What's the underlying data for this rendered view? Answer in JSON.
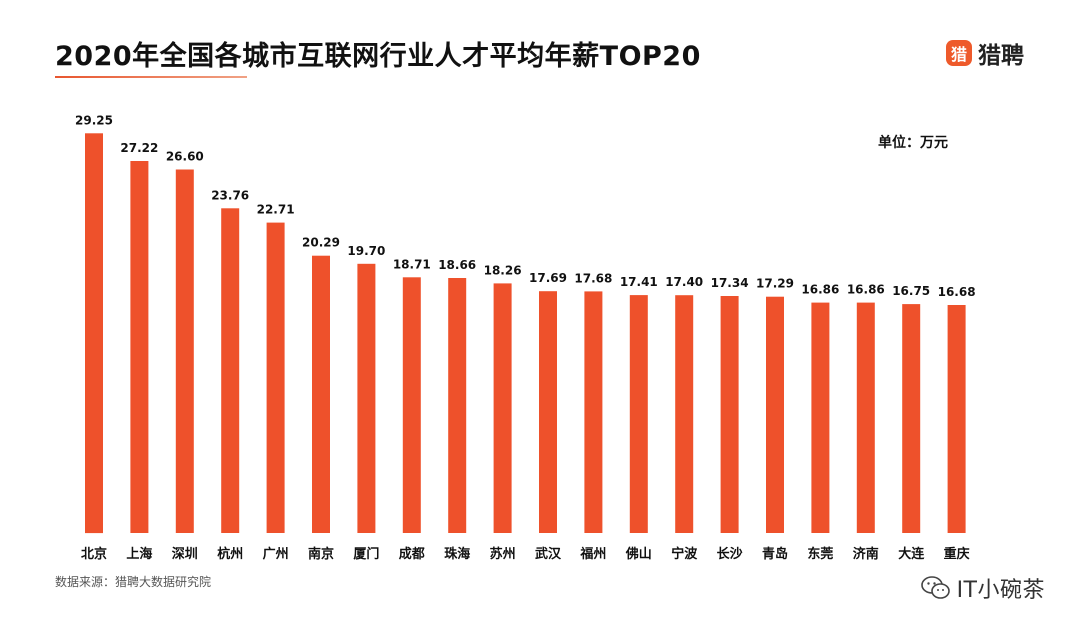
{
  "header": {
    "title": "2020年全国各城市互联网行业人才平均年薪TOP20",
    "logo_mark": "猎",
    "logo_text": "猎聘"
  },
  "unit_label": "单位：万元",
  "source_label": "数据来源：猎聘大数据研究院",
  "watermark_text": "IT小碗茶",
  "colors": {
    "bar": "#ee512b",
    "accent": "#e8562f"
  },
  "chart_data": {
    "type": "bar",
    "title": "2020年全国各城市互联网行业人才平均年薪TOP20",
    "xlabel": "",
    "ylabel": "单位：万元",
    "ylim": [
      0,
      30
    ],
    "grid": false,
    "categories": [
      "北京",
      "上海",
      "深圳",
      "杭州",
      "广州",
      "南京",
      "厦门",
      "成都",
      "珠海",
      "苏州",
      "武汉",
      "福州",
      "佛山",
      "宁波",
      "长沙",
      "青岛",
      "东莞",
      "济南",
      "大连",
      "重庆"
    ],
    "values": [
      29.25,
      27.22,
      26.6,
      23.76,
      22.71,
      20.29,
      19.7,
      18.71,
      18.66,
      18.26,
      17.69,
      17.68,
      17.41,
      17.4,
      17.34,
      17.29,
      16.86,
      16.86,
      16.75,
      16.68
    ],
    "value_labels": [
      "29.25",
      "27.22",
      "26.60",
      "23.76",
      "22.71",
      "20.29",
      "19.70",
      "18.71",
      "18.66",
      "18.26",
      "17.69",
      "17.68",
      "17.41",
      "17.40",
      "17.34",
      "17.29",
      "16.86",
      "16.86",
      "16.75",
      "16.68"
    ]
  }
}
